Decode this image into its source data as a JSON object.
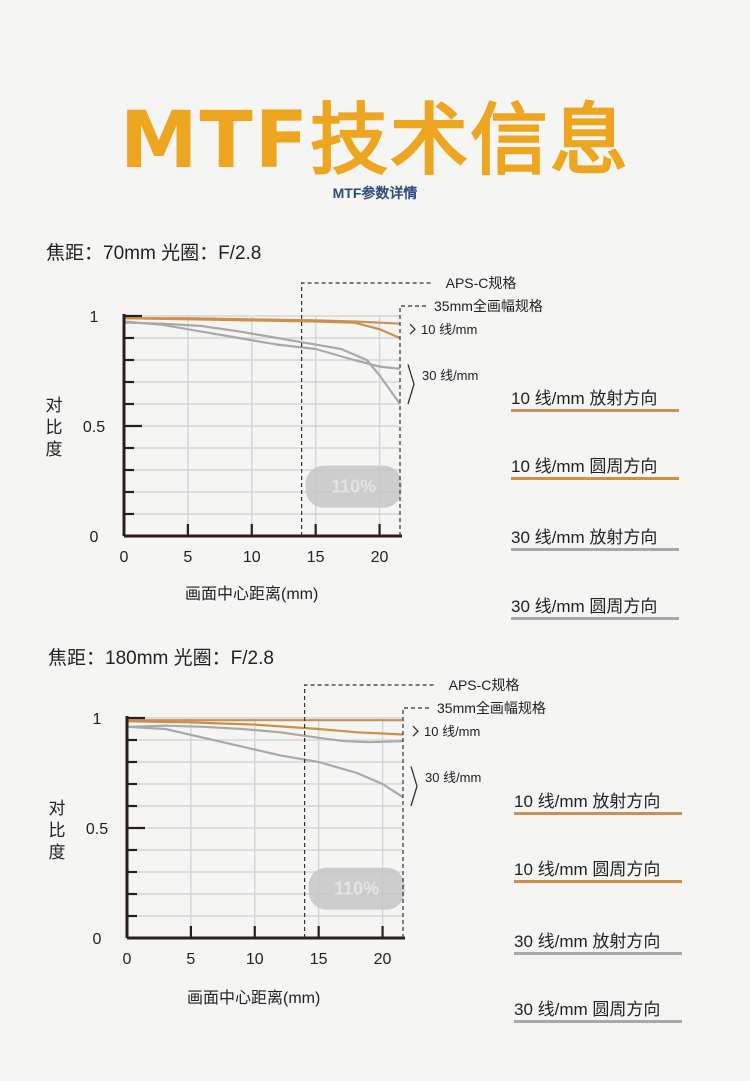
{
  "title": "MTF技术信息",
  "subtitle": "MTF参数详情",
  "colors": {
    "title": "#eea51f",
    "subtitle": "#2d4a7a",
    "line_10_radial": "#c8925a",
    "line_10_circ": "#cf8f46",
    "line_30": "#a9a9a9",
    "badge": "#c6c6c6"
  },
  "legend": [
    {
      "label": "10 线/mm  放射方向",
      "color": "#c8925a"
    },
    {
      "label": "10 线/mm  圆周方向",
      "color": "#cf8f46"
    },
    {
      "label": "30 线/mm  放射方向",
      "color": "#a9a9a9"
    },
    {
      "label": "30 线/mm  圆周方向",
      "color": "#a9a9a9"
    }
  ],
  "chart_data": [
    {
      "type": "line",
      "header": "焦距：70mm  光圈：F/2.8",
      "xlabel": "画面中心距离(mm)",
      "ylabel": "对比度",
      "ylabel_chars": [
        "对",
        "比",
        "度"
      ],
      "xlim": [
        0,
        21.6
      ],
      "ylim": [
        0,
        1
      ],
      "xticks": [
        0,
        5,
        10,
        15,
        20
      ],
      "yticks": [
        {
          "v": 0,
          "label": "0"
        },
        {
          "v": 0.5,
          "label": "0.5"
        },
        {
          "v": 1,
          "label": "1"
        }
      ],
      "grid": true,
      "annotations": {
        "apsc": "APS-C规格",
        "apsc_x": 13.9,
        "ff": "35mm全画幅规格",
        "ff_x": 21.6,
        "group10": "10 线/mm",
        "group30": "30 线/mm",
        "badge": "110%"
      },
      "series": [
        {
          "name": "10 线/mm  放射方向",
          "color": "#c8925a",
          "x": [
            0,
            5,
            10,
            15,
            18,
            20,
            21.6
          ],
          "y": [
            0.99,
            0.99,
            0.985,
            0.98,
            0.975,
            0.97,
            0.965
          ]
        },
        {
          "name": "10 线/mm  圆周方向",
          "color": "#cf8f46",
          "x": [
            0,
            5,
            10,
            15,
            18,
            20,
            21.6
          ],
          "y": [
            0.99,
            0.985,
            0.98,
            0.975,
            0.97,
            0.94,
            0.9
          ]
        },
        {
          "name": "30 线/mm  放射方向",
          "color": "#a9a9a9",
          "x": [
            0,
            3,
            6,
            9,
            12,
            15,
            18,
            20,
            21.6
          ],
          "y": [
            0.975,
            0.96,
            0.93,
            0.9,
            0.87,
            0.85,
            0.8,
            0.77,
            0.76
          ]
        },
        {
          "name": "30 线/mm  圆周方向",
          "color": "#a9a9a9",
          "x": [
            0,
            3,
            6,
            9,
            12,
            14,
            15,
            17,
            19,
            20,
            21.6
          ],
          "y": [
            0.97,
            0.965,
            0.955,
            0.93,
            0.9,
            0.88,
            0.87,
            0.85,
            0.8,
            0.73,
            0.6
          ]
        }
      ]
    },
    {
      "type": "line",
      "header": "焦距：180mm  光圈：F/2.8",
      "xlabel": "画面中心距离(mm)",
      "ylabel": "对比度",
      "ylabel_chars": [
        "对",
        "比",
        "度"
      ],
      "xlim": [
        0,
        21.6
      ],
      "ylim": [
        0,
        1
      ],
      "xticks": [
        0,
        5,
        10,
        15,
        20
      ],
      "yticks": [
        {
          "v": 0,
          "label": "0"
        },
        {
          "v": 0.5,
          "label": "0.5"
        },
        {
          "v": 1,
          "label": "1"
        }
      ],
      "grid": true,
      "annotations": {
        "apsc": "APS-C规格",
        "apsc_x": 13.9,
        "ff": "35mm全画幅规格",
        "ff_x": 21.6,
        "group10": "10 线/mm",
        "group30": "30 线/mm",
        "badge": "110%"
      },
      "series": [
        {
          "name": "10 线/mm  放射方向",
          "color": "#c8925a",
          "x": [
            0,
            5,
            10,
            15,
            18,
            21.6
          ],
          "y": [
            0.99,
            0.99,
            0.99,
            0.99,
            0.99,
            0.99
          ]
        },
        {
          "name": "10 线/mm  圆周方向",
          "color": "#cf8f46",
          "x": [
            0,
            5,
            10,
            15,
            18,
            21.6
          ],
          "y": [
            0.985,
            0.98,
            0.97,
            0.95,
            0.935,
            0.925
          ]
        },
        {
          "name": "30 线/mm  放射方向",
          "color": "#a9a9a9",
          "x": [
            0,
            3,
            6,
            9,
            12,
            15,
            17,
            19,
            21.6
          ],
          "y": [
            0.96,
            0.965,
            0.96,
            0.95,
            0.935,
            0.91,
            0.895,
            0.89,
            0.895
          ]
        },
        {
          "name": "30 线/mm  圆周方向",
          "color": "#a9a9a9",
          "x": [
            0,
            3,
            6,
            9,
            12,
            15,
            18,
            20,
            21.6
          ],
          "y": [
            0.96,
            0.95,
            0.91,
            0.87,
            0.83,
            0.8,
            0.75,
            0.7,
            0.64
          ]
        }
      ]
    }
  ]
}
